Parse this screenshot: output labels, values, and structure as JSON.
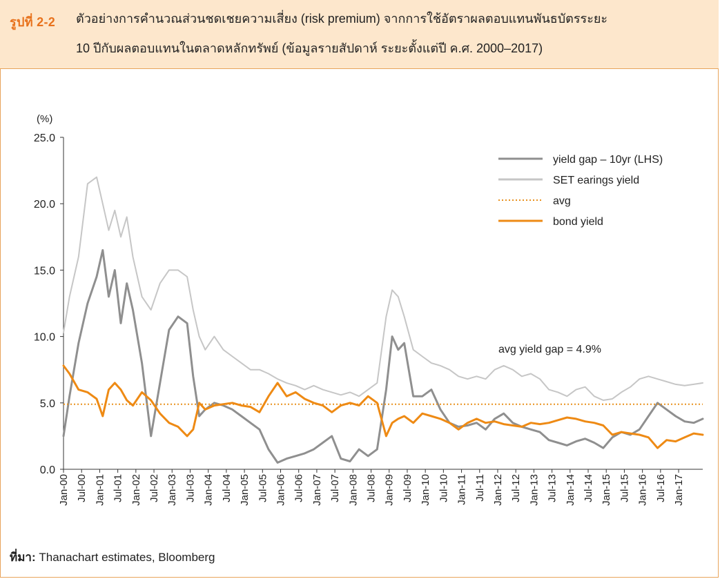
{
  "figure": {
    "label": "รูปที่ 2-2",
    "title_line1": "ตัวอย่างการคำนวณส่วนชดเชยความเสี่ยง (risk premium) จากการใช้อัตราผลตอบแทนพันธบัตรระยะ",
    "title_line2": "10 ปีกับผลตอบแทนในตลาดหลักทรัพย์ (ข้อมูลรายสัปดาห์ ระยะตั้งแต่ปี ค.ศ. 2000–2017)"
  },
  "source": {
    "label": "ที่มา:",
    "text": "Thanachart estimates, Bloomberg"
  },
  "colors": {
    "yield_gap": "#8f8f8f",
    "set_yield": "#c6c6c6",
    "avg": "#e8901c",
    "bond_yield": "#ee8a14",
    "accent": "#e8721c"
  },
  "chart_data": {
    "type": "line",
    "y_unit": "(%)",
    "ylim": [
      0,
      25
    ],
    "y_ticks": [
      "0.0",
      "5.0",
      "10.0",
      "15.0",
      "20.0",
      "25.0"
    ],
    "x_ticks": [
      "Jan-00",
      "Jul-00",
      "Jan-01",
      "Jul-01",
      "Jan-02",
      "Jul-02",
      "Jan-03",
      "Jul-03",
      "Jan-04",
      "Jul-04",
      "Jan-05",
      "Jul-05",
      "Jan-06",
      "Jul-06",
      "Jan-07",
      "Jul-07",
      "Jan-08",
      "Jul-08",
      "Jan-09",
      "Jul-09",
      "Jan-10",
      "Jul-10",
      "Jan-11",
      "Jul-11",
      "Jan-12",
      "Jul-12",
      "Jan-13",
      "Jul-13",
      "Jan-14",
      "Jul-14",
      "Jan-15",
      "Jul-15",
      "Jan-16",
      "Jul-16",
      "Jan-17"
    ],
    "x_range": [
      "2000-01",
      "2017-09"
    ],
    "legend_position": "top-right",
    "grid": false,
    "annotation": "avg yield gap = 4.9%",
    "avg_value": 4.9,
    "series": [
      {
        "name": "yield gap – 10yr (LHS)",
        "key": "yield_gap",
        "style": "solid",
        "x": [
          "2000-01",
          "2000-03",
          "2000-06",
          "2000-09",
          "2000-12",
          "2001-02",
          "2001-04",
          "2001-06",
          "2001-08",
          "2001-10",
          "2001-12",
          "2002-03",
          "2002-06",
          "2002-09",
          "2002-12",
          "2003-03",
          "2003-06",
          "2003-08",
          "2003-10",
          "2003-12",
          "2004-03",
          "2004-06",
          "2004-09",
          "2004-12",
          "2005-03",
          "2005-06",
          "2005-09",
          "2005-12",
          "2006-03",
          "2006-06",
          "2006-09",
          "2006-12",
          "2007-03",
          "2007-06",
          "2007-09",
          "2007-12",
          "2008-03",
          "2008-06",
          "2008-09",
          "2008-12",
          "2009-02",
          "2009-04",
          "2009-06",
          "2009-09",
          "2009-12",
          "2010-03",
          "2010-06",
          "2010-09",
          "2010-12",
          "2011-03",
          "2011-06",
          "2011-09",
          "2011-12",
          "2012-03",
          "2012-06",
          "2012-09",
          "2012-12",
          "2013-03",
          "2013-06",
          "2013-09",
          "2013-12",
          "2014-03",
          "2014-06",
          "2014-09",
          "2014-12",
          "2015-03",
          "2015-06",
          "2015-09",
          "2015-12",
          "2016-03",
          "2016-06",
          "2016-09",
          "2016-12",
          "2017-03",
          "2017-06",
          "2017-09"
        ],
        "values": [
          2.5,
          5.5,
          9.5,
          12.5,
          14.5,
          16.5,
          13.0,
          15.0,
          11.0,
          14.0,
          12.0,
          8.0,
          2.5,
          6.5,
          10.5,
          11.5,
          11.0,
          7.0,
          4.0,
          4.5,
          5.0,
          4.8,
          4.5,
          4.0,
          3.5,
          3.0,
          1.5,
          0.5,
          0.8,
          1.0,
          1.2,
          1.5,
          2.0,
          2.5,
          0.8,
          0.6,
          1.5,
          1.0,
          1.5,
          6.0,
          10.0,
          9.0,
          9.5,
          5.5,
          5.5,
          6.0,
          4.5,
          3.5,
          3.2,
          3.3,
          3.5,
          3.0,
          3.8,
          4.2,
          3.5,
          3.2,
          3.0,
          2.8,
          2.2,
          2.0,
          1.8,
          2.1,
          2.3,
          2.0,
          1.6,
          2.4,
          2.8,
          2.6,
          3.0,
          4.0,
          5.0,
          4.5,
          4.0,
          3.6,
          3.5,
          3.8
        ]
      },
      {
        "name": "SET earings yield",
        "key": "set_yield",
        "style": "solid",
        "x": [
          "2000-01",
          "2000-03",
          "2000-06",
          "2000-09",
          "2000-12",
          "2001-02",
          "2001-04",
          "2001-06",
          "2001-08",
          "2001-10",
          "2001-12",
          "2002-03",
          "2002-06",
          "2002-09",
          "2002-12",
          "2003-03",
          "2003-06",
          "2003-08",
          "2003-10",
          "2003-12",
          "2004-03",
          "2004-06",
          "2004-09",
          "2004-12",
          "2005-03",
          "2005-06",
          "2005-09",
          "2005-12",
          "2006-03",
          "2006-06",
          "2006-09",
          "2006-12",
          "2007-03",
          "2007-06",
          "2007-09",
          "2007-12",
          "2008-03",
          "2008-06",
          "2008-09",
          "2008-12",
          "2009-02",
          "2009-04",
          "2009-06",
          "2009-09",
          "2009-12",
          "2010-03",
          "2010-06",
          "2010-09",
          "2010-12",
          "2011-03",
          "2011-06",
          "2011-09",
          "2011-12",
          "2012-03",
          "2012-06",
          "2012-09",
          "2012-12",
          "2013-03",
          "2013-06",
          "2013-09",
          "2013-12",
          "2014-03",
          "2014-06",
          "2014-09",
          "2014-12",
          "2015-03",
          "2015-06",
          "2015-09",
          "2015-12",
          "2016-03",
          "2016-06",
          "2016-09",
          "2016-12",
          "2017-03",
          "2017-06",
          "2017-09"
        ],
        "values": [
          10.3,
          13.0,
          16.0,
          21.5,
          22.0,
          20.0,
          18.0,
          19.5,
          17.5,
          19.0,
          16.0,
          13.0,
          12.0,
          14.0,
          15.0,
          15.0,
          14.5,
          12.0,
          10.0,
          9.0,
          10.0,
          9.0,
          8.5,
          8.0,
          7.5,
          7.5,
          7.2,
          6.8,
          6.5,
          6.3,
          6.0,
          6.3,
          6.0,
          5.8,
          5.6,
          5.8,
          5.5,
          6.0,
          6.5,
          11.5,
          13.5,
          13.0,
          11.5,
          9.0,
          8.5,
          8.0,
          7.8,
          7.5,
          7.0,
          6.8,
          7.0,
          6.8,
          7.5,
          7.8,
          7.5,
          7.0,
          7.2,
          6.8,
          6.0,
          5.8,
          5.5,
          6.0,
          6.2,
          5.5,
          5.2,
          5.3,
          5.8,
          6.2,
          6.8,
          7.0,
          6.8,
          6.6,
          6.4,
          6.3,
          6.4,
          6.5
        ]
      },
      {
        "name": "avg",
        "key": "avg",
        "style": "dotted",
        "x": [
          "2000-01",
          "2017-09"
        ],
        "values": [
          4.9,
          4.9
        ]
      },
      {
        "name": "bond yield",
        "key": "bond_yield",
        "style": "solid",
        "x": [
          "2000-01",
          "2000-03",
          "2000-06",
          "2000-09",
          "2000-12",
          "2001-02",
          "2001-04",
          "2001-06",
          "2001-08",
          "2001-10",
          "2001-12",
          "2002-03",
          "2002-06",
          "2002-09",
          "2002-12",
          "2003-03",
          "2003-06",
          "2003-08",
          "2003-10",
          "2003-12",
          "2004-03",
          "2004-06",
          "2004-09",
          "2004-12",
          "2005-03",
          "2005-06",
          "2005-09",
          "2005-12",
          "2006-03",
          "2006-06",
          "2006-09",
          "2006-12",
          "2007-03",
          "2007-06",
          "2007-09",
          "2007-12",
          "2008-03",
          "2008-06",
          "2008-09",
          "2008-12",
          "2009-02",
          "2009-04",
          "2009-06",
          "2009-09",
          "2009-12",
          "2010-03",
          "2010-06",
          "2010-09",
          "2010-12",
          "2011-03",
          "2011-06",
          "2011-09",
          "2011-12",
          "2012-03",
          "2012-06",
          "2012-09",
          "2012-12",
          "2013-03",
          "2013-06",
          "2013-09",
          "2013-12",
          "2014-03",
          "2014-06",
          "2014-09",
          "2014-12",
          "2015-03",
          "2015-06",
          "2015-09",
          "2015-12",
          "2016-03",
          "2016-06",
          "2016-09",
          "2016-12",
          "2017-03",
          "2017-06",
          "2017-09"
        ],
        "values": [
          7.8,
          7.2,
          6.0,
          5.8,
          5.3,
          4.0,
          6.0,
          6.5,
          6.0,
          5.2,
          4.8,
          5.8,
          5.2,
          4.2,
          3.5,
          3.2,
          2.5,
          3.0,
          5.0,
          4.5,
          4.8,
          4.9,
          5.0,
          4.8,
          4.7,
          4.3,
          5.5,
          6.5,
          5.5,
          5.8,
          5.3,
          5.0,
          4.8,
          4.3,
          4.8,
          5.0,
          4.8,
          5.5,
          5.0,
          2.5,
          3.5,
          3.8,
          4.0,
          3.5,
          4.2,
          4.0,
          3.8,
          3.5,
          3.0,
          3.5,
          3.8,
          3.5,
          3.6,
          3.4,
          3.3,
          3.2,
          3.5,
          3.4,
          3.5,
          3.7,
          3.9,
          3.8,
          3.6,
          3.5,
          3.3,
          2.6,
          2.8,
          2.7,
          2.6,
          2.4,
          1.6,
          2.2,
          2.1,
          2.4,
          2.7,
          2.6
        ]
      }
    ]
  }
}
